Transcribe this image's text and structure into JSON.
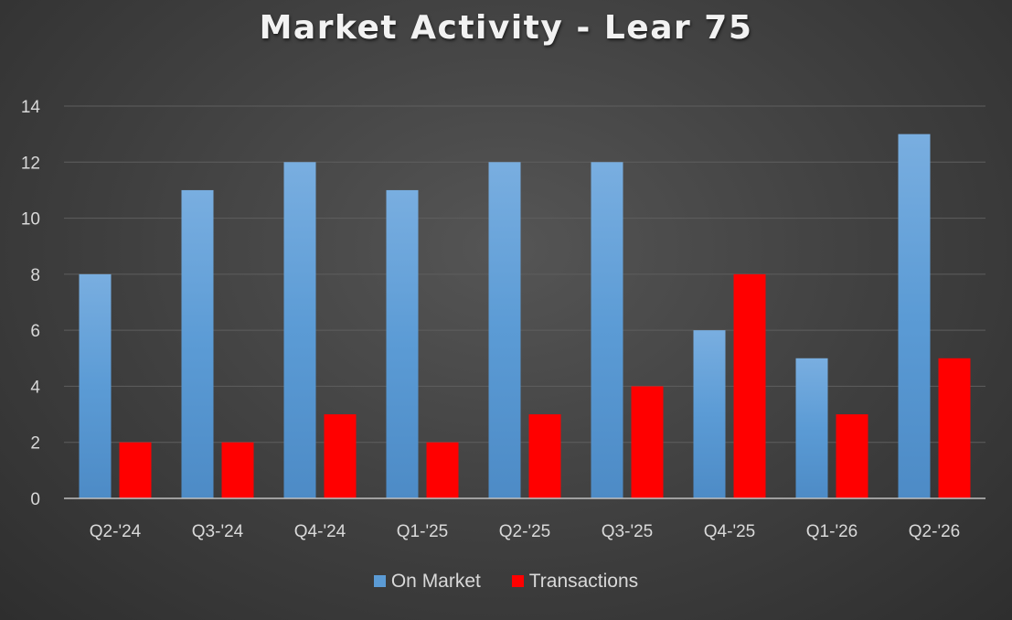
{
  "chart_data": {
    "type": "bar",
    "title": "Market Activity - Lear 75",
    "categories": [
      "Q2-'24",
      "Q3-'24",
      "Q4-'24",
      "Q1-'25",
      "Q2-'25",
      "Q3-'25",
      "Q4-'25",
      "Q1-'26",
      "Q2-'26"
    ],
    "series": [
      {
        "name": "On Market",
        "values": [
          8,
          11,
          12,
          11,
          12,
          12,
          6,
          5,
          13
        ],
        "color": "#5b9bd5"
      },
      {
        "name": "Transactions",
        "values": [
          2,
          2,
          3,
          2,
          3,
          4,
          8,
          3,
          5
        ],
        "color": "#ff0000"
      }
    ],
    "ylim": [
      0,
      14
    ],
    "yticks": [
      0,
      2,
      4,
      6,
      8,
      10,
      12,
      14
    ],
    "xlabel": "",
    "ylabel": "",
    "grid": true,
    "legend_position": "bottom",
    "background": "#404040"
  }
}
